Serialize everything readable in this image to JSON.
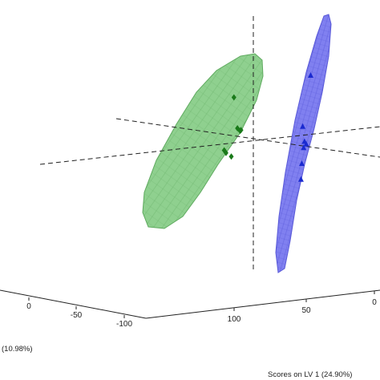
{
  "chart_data": {
    "type": "scatter",
    "title": "",
    "xlabel": "Scores on LV 1 (24.90%)",
    "ylabel": "",
    "zlabel_fragment": "(10.98%)",
    "lv2_ticks": [
      "0",
      "-50",
      "-100"
    ],
    "lv1_ticks": [
      "100",
      "50",
      "0"
    ],
    "grid": false,
    "series": [
      {
        "marker": "diamond",
        "color": "#1a7a1a",
        "ellipse_fill": "#8fd08f",
        "ellipse_stroke": "#5faa5f",
        "points": [
          {
            "lv1": -0.22,
            "lv2": 0.55
          },
          {
            "lv1": -0.18,
            "lv2": 0.2
          },
          {
            "lv1": -0.15,
            "lv2": 0.17
          },
          {
            "lv1": -0.14,
            "lv2": 0.18
          },
          {
            "lv1": -0.33,
            "lv2": -0.05
          },
          {
            "lv1": -0.31,
            "lv2": -0.08
          },
          {
            "lv1": -0.25,
            "lv2": -0.12
          }
        ]
      },
      {
        "marker": "triangle",
        "color": "#1a2ad0",
        "ellipse_fill": "#8080f0",
        "ellipse_stroke": "#5a5ad8",
        "points": [
          {
            "lv1": 0.65,
            "lv2": 0.8
          },
          {
            "lv1": 0.56,
            "lv2": 0.22
          },
          {
            "lv1": 0.58,
            "lv2": 0.05
          },
          {
            "lv1": 0.6,
            "lv2": 0.02
          },
          {
            "lv1": 0.57,
            "lv2": -0.02
          },
          {
            "lv1": 0.55,
            "lv2": -0.2
          },
          {
            "lv1": 0.54,
            "lv2": -0.38
          }
        ]
      }
    ]
  }
}
